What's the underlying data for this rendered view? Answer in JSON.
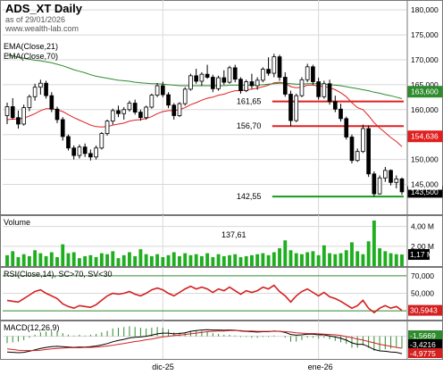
{
  "header": {
    "title": "ADS_XT Daily",
    "asof": "as of 29/01/2026",
    "site": "www.wealth-lab.com"
  },
  "colors": {
    "up": "#2e8b2e",
    "down": "#d42020",
    "wick": "#000000",
    "ema21": "#e02020",
    "ema70": "#2e8b2e",
    "volume": "#1fae1f",
    "rsi": "#d42020",
    "resistance": "#e02020",
    "support": "#1a9a1a",
    "macd": "#000000",
    "signal": "#d42020",
    "hist": "#2e8b2e",
    "grid": "#d8d8d8",
    "axisbg": "#ffffff"
  },
  "chart_data": [
    {
      "type": "candlestick",
      "title": "ADS_XT Daily",
      "y_axis_ticks": [
        "180,000",
        "175,000",
        "170,000",
        "165,000",
        "160,000",
        "155,000",
        "150,000",
        "145,000"
      ],
      "ylim": [
        139,
        182
      ],
      "x_labels": [
        {
          "label": "dic-25",
          "index": 28
        },
        {
          "label": "ene-26",
          "index": 56
        }
      ],
      "legend": [
        "EMA(Close,21)",
        "EMA(Close,70)"
      ],
      "ohlc": [
        [
          158.8,
          161.4,
          157.1,
          160.6
        ],
        [
          160.6,
          162.3,
          158.0,
          158.4
        ],
        [
          158.4,
          159.8,
          156.2,
          157.1
        ],
        [
          157.1,
          161.0,
          156.8,
          160.4
        ],
        [
          160.4,
          163.0,
          159.7,
          162.6
        ],
        [
          162.6,
          165.2,
          161.8,
          164.5
        ],
        [
          164.5,
          166.0,
          163.0,
          165.3
        ],
        [
          165.3,
          165.8,
          162.2,
          162.8
        ],
        [
          162.8,
          163.5,
          159.5,
          160.1
        ],
        [
          160.1,
          160.6,
          157.3,
          158.0
        ],
        [
          158.0,
          158.5,
          153.8,
          154.6
        ],
        [
          154.6,
          155.0,
          151.8,
          152.3
        ],
        [
          152.3,
          152.8,
          150.0,
          150.8
        ],
        [
          150.8,
          153.0,
          150.2,
          152.5
        ],
        [
          152.5,
          153.2,
          150.5,
          151.2
        ],
        [
          151.2,
          152.0,
          149.8,
          150.5
        ],
        [
          150.5,
          152.8,
          150.0,
          152.3
        ],
        [
          152.3,
          155.5,
          152.0,
          155.2
        ],
        [
          155.2,
          158.0,
          154.8,
          157.7
        ],
        [
          157.7,
          160.2,
          157.0,
          159.8
        ],
        [
          159.8,
          160.8,
          158.5,
          159.2
        ],
        [
          159.2,
          160.5,
          158.0,
          160.0
        ],
        [
          160.0,
          161.8,
          159.6,
          161.3
        ],
        [
          161.3,
          162.0,
          159.0,
          159.5
        ],
        [
          159.5,
          160.0,
          157.8,
          158.4
        ],
        [
          158.4,
          160.8,
          158.0,
          160.5
        ],
        [
          160.5,
          163.2,
          160.2,
          162.9
        ],
        [
          162.9,
          165.3,
          162.5,
          164.8
        ],
        [
          164.8,
          165.6,
          162.5,
          163.0
        ],
        [
          163.0,
          163.5,
          160.3,
          160.9
        ],
        [
          160.9,
          161.3,
          158.0,
          158.8
        ],
        [
          158.8,
          161.5,
          158.5,
          161.2
        ],
        [
          161.2,
          164.5,
          160.8,
          164.1
        ],
        [
          164.1,
          167.2,
          163.8,
          166.8
        ],
        [
          166.8,
          168.2,
          165.2,
          165.7
        ],
        [
          165.7,
          167.5,
          164.8,
          167.1
        ],
        [
          167.1,
          169.0,
          166.2,
          166.5
        ],
        [
          166.5,
          167.0,
          163.5,
          164.2
        ],
        [
          164.2,
          166.8,
          163.8,
          166.4
        ],
        [
          166.4,
          167.9,
          165.0,
          165.5
        ],
        [
          165.5,
          168.8,
          165.2,
          168.4
        ],
        [
          168.4,
          169.0,
          165.5,
          166.1
        ],
        [
          166.1,
          166.5,
          163.2,
          163.8
        ],
        [
          163.8,
          166.0,
          163.5,
          165.6
        ],
        [
          165.6,
          167.2,
          164.2,
          164.8
        ],
        [
          164.8,
          166.5,
          164.0,
          165.9
        ],
        [
          165.9,
          168.5,
          165.5,
          168.1
        ],
        [
          168.1,
          170.5,
          166.8,
          167.3
        ],
        [
          167.3,
          171.2,
          166.5,
          170.6
        ],
        [
          170.6,
          171.0,
          165.8,
          166.5
        ],
        [
          166.5,
          167.5,
          162.6,
          163.1
        ],
        [
          163.1,
          163.8,
          156.7,
          157.8
        ],
        [
          157.8,
          163.2,
          157.5,
          162.8
        ],
        [
          162.8,
          166.5,
          162.5,
          166.0
        ],
        [
          166.0,
          169.2,
          165.5,
          168.6
        ],
        [
          168.6,
          169.0,
          165.0,
          165.6
        ],
        [
          165.6,
          166.4,
          162.0,
          162.6
        ],
        [
          162.6,
          165.8,
          162.2,
          165.2
        ],
        [
          165.2,
          166.0,
          161.0,
          161.6
        ],
        [
          161.6,
          162.8,
          159.5,
          160.1
        ],
        [
          160.1,
          161.2,
          157.6,
          158.2
        ],
        [
          158.2,
          158.6,
          154.0,
          154.5
        ],
        [
          154.5,
          155.0,
          149.2,
          149.8
        ],
        [
          149.8,
          152.2,
          149.5,
          151.6
        ],
        [
          151.6,
          157.0,
          151.3,
          156.2
        ],
        [
          156.2,
          156.8,
          146.5,
          147.1
        ],
        [
          147.1,
          147.6,
          142.6,
          143.1
        ],
        [
          143.1,
          146.8,
          142.9,
          146.3
        ],
        [
          146.3,
          148.5,
          145.5,
          147.8
        ],
        [
          147.8,
          148.0,
          144.8,
          145.4
        ],
        [
          145.4,
          146.8,
          144.2,
          146.1
        ],
        [
          146.1,
          146.4,
          142.9,
          143.5
        ]
      ],
      "series": [
        {
          "name": "EMA(Close,21)",
          "values": [
            158.0,
            158.1,
            158.1,
            158.3,
            158.7,
            159.2,
            159.8,
            160.2,
            160.2,
            160.0,
            159.6,
            159.0,
            158.4,
            157.9,
            157.4,
            156.9,
            156.6,
            156.5,
            156.6,
            156.9,
            157.1,
            157.3,
            157.7,
            157.9,
            158.0,
            158.2,
            158.6,
            159.2,
            159.6,
            159.8,
            159.8,
            160.0,
            160.4,
            161.0,
            161.4,
            161.9,
            162.3,
            162.5,
            162.9,
            163.1,
            163.5,
            163.8,
            163.8,
            164.0,
            164.1,
            164.3,
            164.6,
            164.9,
            165.4,
            165.5,
            165.3,
            164.6,
            164.4,
            164.5,
            164.9,
            164.9,
            164.7,
            164.7,
            164.4,
            164.0,
            163.4,
            162.6,
            161.4,
            160.4,
            160.0,
            158.8,
            157.4,
            156.3,
            155.4,
            154.4,
            153.6,
            152.6
          ]
        },
        {
          "name": "EMA(Close,70)",
          "values": [
            171.0,
            170.8,
            170.5,
            170.3,
            170.1,
            169.9,
            169.8,
            169.6,
            169.4,
            169.1,
            168.8,
            168.4,
            168.0,
            167.7,
            167.4,
            167.0,
            166.7,
            166.5,
            166.3,
            166.1,
            165.9,
            165.8,
            165.7,
            165.5,
            165.4,
            165.3,
            165.2,
            165.2,
            165.1,
            165.0,
            164.9,
            164.8,
            164.8,
            164.8,
            164.8,
            164.8,
            164.8,
            164.8,
            164.8,
            164.8,
            164.9,
            164.9,
            164.9,
            164.9,
            164.9,
            164.9,
            165.0,
            165.1,
            165.2,
            165.3,
            165.3,
            165.2,
            165.1,
            165.1,
            165.2,
            165.2,
            165.2,
            165.1,
            165.0,
            164.9,
            164.8,
            164.6,
            164.4,
            164.2,
            164.0,
            163.8,
            163.5,
            163.3,
            163.0,
            162.8,
            162.5,
            162.2
          ]
        }
      ],
      "levels": [
        {
          "label": "161,65",
          "value": 161.65,
          "kind": "resistance",
          "from": 48,
          "to": 71
        },
        {
          "label": "156,70",
          "value": 156.7,
          "kind": "resistance",
          "from": 48,
          "to": 71
        },
        {
          "label": "142,55",
          "value": 142.55,
          "kind": "support",
          "from": 48,
          "to": 71
        }
      ],
      "value_tags": [
        {
          "label": "163,600",
          "value": 163.6,
          "color": "#2e8b2e"
        },
        {
          "label": "154,636",
          "value": 154.636,
          "color": "#e02020"
        },
        {
          "label": "143,500",
          "value": 143.5,
          "color": "#000000"
        },
        {
          "label": "145,000",
          "value": 145.0,
          "color": "#ffffff"
        }
      ]
    },
    {
      "type": "bar",
      "title": "Volume",
      "annotation": "137,61",
      "y_axis_ticks": [
        "4,00 M",
        "2,00 M"
      ],
      "last_value": "1,17 M",
      "ylim": [
        0,
        4.6
      ],
      "values": [
        1.1,
        1.5,
        0.9,
        1.2,
        1.0,
        1.6,
        1.3,
        1.0,
        1.4,
        0.9,
        2.2,
        1.3,
        1.4,
        0.8,
        1.0,
        1.1,
        0.9,
        1.3,
        1.2,
        1.5,
        0.8,
        1.1,
        1.4,
        1.0,
        1.7,
        1.2,
        1.0,
        1.2,
        0.9,
        1.1,
        1.4,
        1.0,
        1.3,
        1.1,
        1.2,
        1.0,
        1.3,
        0.9,
        1.2,
        1.0,
        1.1,
        1.2,
        0.9,
        1.0,
        1.1,
        1.2,
        1.3,
        1.1,
        1.4,
        1.8,
        2.6,
        1.6,
        1.3,
        1.2,
        1.4,
        1.5,
        1.1,
        2.1,
        1.3,
        1.2,
        1.3,
        1.6,
        2.4,
        1.5,
        1.2,
        2.5,
        4.6,
        1.8,
        1.5,
        1.3,
        1.2,
        1.17
      ]
    },
    {
      "type": "line",
      "title": "RSI(Close,14), SC>70, SV<30",
      "y_axis_ticks": [
        "70,000",
        "50,000",
        "30,000"
      ],
      "ylim": [
        20,
        80
      ],
      "bands": [
        70,
        30
      ],
      "last_value": "30,5943",
      "series": [
        {
          "name": "RSI",
          "values": [
            42,
            41,
            40,
            44,
            48,
            52,
            54,
            50,
            47,
            44,
            38,
            35,
            33,
            36,
            35,
            34,
            37,
            42,
            47,
            50,
            49,
            50,
            52,
            49,
            47,
            50,
            54,
            56,
            54,
            50,
            47,
            51,
            55,
            58,
            55,
            57,
            55,
            51,
            55,
            53,
            57,
            53,
            49,
            53,
            51,
            53,
            57,
            55,
            59,
            52,
            47,
            40,
            47,
            52,
            55,
            51,
            47,
            51,
            46,
            44,
            41,
            37,
            33,
            36,
            42,
            33,
            28,
            33,
            36,
            33,
            35,
            30.6
          ]
        }
      ]
    },
    {
      "type": "line",
      "title": "MACD(12,26,9)",
      "last_values": [
        {
          "label": "-1,5669",
          "color": "#2e8b2e"
        },
        {
          "label": "-3,4216",
          "color": "#000000"
        },
        {
          "label": "-4,9775",
          "color": "#d42020"
        }
      ],
      "ylim": [
        -6.5,
        4.5
      ],
      "series": [
        {
          "name": "MACD",
          "values": [
            -4.5,
            -4.6,
            -4.7,
            -4.6,
            -4.3,
            -3.9,
            -3.5,
            -3.2,
            -3.0,
            -2.9,
            -3.0,
            -3.1,
            -3.2,
            -3.1,
            -3.1,
            -3.0,
            -2.8,
            -2.5,
            -2.1,
            -1.6,
            -1.2,
            -0.9,
            -0.5,
            -0.3,
            -0.2,
            0.0,
            0.3,
            0.7,
            0.9,
            0.9,
            0.7,
            0.8,
            1.0,
            1.4,
            1.6,
            1.8,
            1.9,
            1.8,
            1.8,
            1.7,
            1.8,
            1.7,
            1.5,
            1.4,
            1.3,
            1.2,
            1.3,
            1.3,
            1.5,
            1.4,
            1.1,
            0.5,
            0.3,
            0.4,
            0.6,
            0.6,
            0.4,
            0.4,
            0.1,
            -0.2,
            -0.6,
            -1.1,
            -1.9,
            -2.3,
            -2.3,
            -3.0,
            -3.8,
            -4.2,
            -4.3,
            -4.5,
            -4.6,
            -4.98
          ]
        },
        {
          "name": "Signal",
          "values": [
            -3.6,
            -3.8,
            -4.0,
            -4.1,
            -4.1,
            -4.1,
            -4.0,
            -3.8,
            -3.6,
            -3.5,
            -3.4,
            -3.3,
            -3.3,
            -3.3,
            -3.2,
            -3.2,
            -3.1,
            -3.0,
            -2.8,
            -2.6,
            -2.3,
            -2.1,
            -1.8,
            -1.5,
            -1.3,
            -1.0,
            -0.8,
            -0.5,
            -0.2,
            0.0,
            0.2,
            0.3,
            0.5,
            0.7,
            0.9,
            1.1,
            1.3,
            1.4,
            1.5,
            1.5,
            1.6,
            1.6,
            1.6,
            1.5,
            1.5,
            1.4,
            1.4,
            1.4,
            1.4,
            1.4,
            1.3,
            1.2,
            1.0,
            0.9,
            0.8,
            0.8,
            0.7,
            0.6,
            0.5,
            0.4,
            0.2,
            -0.1,
            -0.4,
            -0.8,
            -1.1,
            -1.5,
            -1.9,
            -2.3,
            -2.6,
            -2.9,
            -3.2,
            -3.42
          ]
        }
      ]
    }
  ]
}
